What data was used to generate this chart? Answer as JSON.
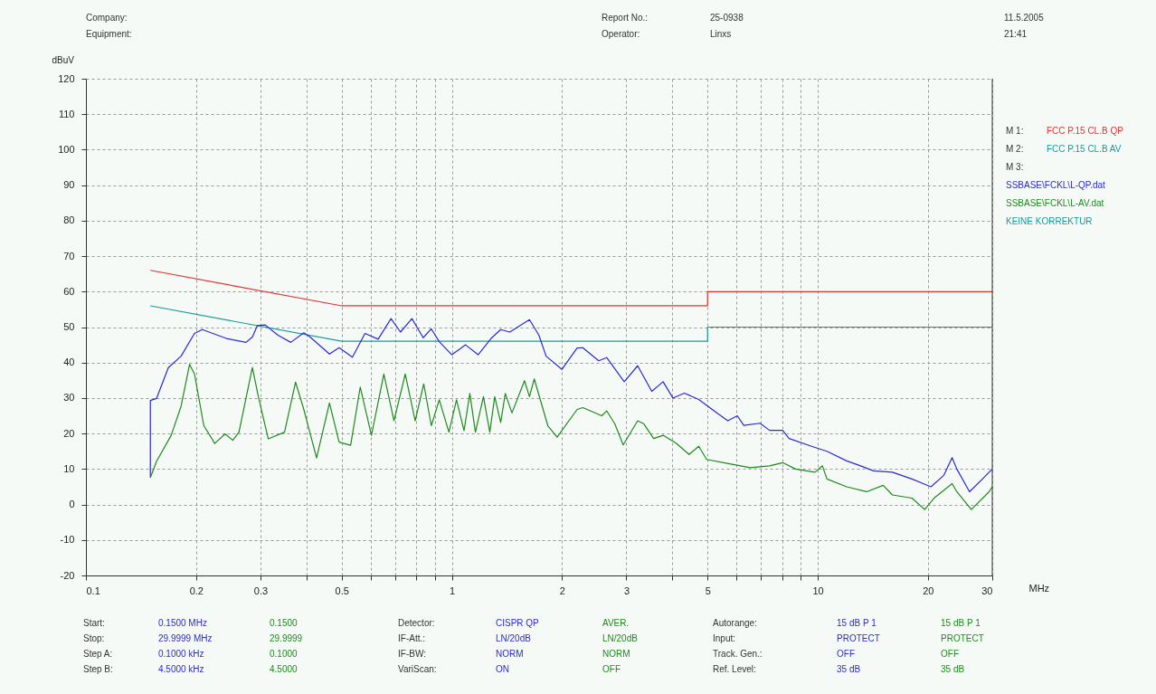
{
  "chart_data": {
    "type": "line",
    "ylabel": "dBuV",
    "xlabel": "MHz",
    "log": "x",
    "grid": true,
    "legend": "right",
    "xlim": [
      0.1,
      30
    ],
    "ylim": [
      -20,
      120
    ],
    "xticks": [
      0.1,
      0.2,
      0.3,
      {
        "value": 0.4,
        "label": null
      },
      0.5,
      {
        "value": 0.6,
        "label": null
      },
      {
        "value": 0.7,
        "label": null
      },
      {
        "value": 0.8,
        "label": null
      },
      {
        "value": 0.9,
        "label": null
      },
      1,
      2,
      3,
      {
        "value": 4,
        "label": null
      },
      5,
      {
        "value": 6,
        "label": null
      },
      {
        "value": 7,
        "label": null
      },
      {
        "value": 8,
        "label": null
      },
      {
        "value": 9,
        "label": null
      },
      10,
      20,
      30
    ],
    "yticks": [
      -20,
      -10,
      0,
      10,
      20,
      30,
      40,
      50,
      60,
      70,
      80,
      90,
      100,
      110,
      120
    ],
    "series": [
      {
        "name": "FCC P.15 CL.B QP",
        "color": "#e83232",
        "x": [
          0.15,
          0.5,
          5,
          5,
          30
        ],
        "values": [
          66,
          56,
          56,
          60,
          60
        ]
      },
      {
        "name": "FCC P.15 CL.B AV",
        "color": "#1a9a9a",
        "x": [
          0.15,
          0.5,
          5,
          5,
          30
        ],
        "values": [
          56,
          46,
          46,
          50,
          50
        ]
      },
      {
        "name": "SSBASE\\FCKL\\L-QP.dat",
        "color": "#2a2ad8",
        "x": [
          0.15,
          0.15,
          0.156,
          0.168,
          0.182,
          0.198,
          0.208,
          0.242,
          0.274,
          0.285,
          0.294,
          0.309,
          0.335,
          0.363,
          0.394,
          0.41,
          0.463,
          0.492,
          0.535,
          0.579,
          0.629,
          0.682,
          0.724,
          0.778,
          0.835,
          0.879,
          0.924,
          1.0,
          1.09,
          1.18,
          1.28,
          1.36,
          1.44,
          1.63,
          1.73,
          1.81,
          2.0,
          2.2,
          2.28,
          2.52,
          2.65,
          2.96,
          3.22,
          3.52,
          3.78,
          4.02,
          4.32,
          4.73,
          5.35,
          5.68,
          6.03,
          6.28,
          6.95,
          7.39,
          8.02,
          8.35,
          9.62,
          10.6,
          12.0,
          13.1,
          14.2,
          16.0,
          18.1,
          20.4,
          22.1,
          23.3,
          24.0,
          26.0,
          28.2,
          29.4,
          30
        ],
        "values": [
          7.6,
          29.3,
          29.9,
          38.6,
          41.8,
          48.2,
          49.3,
          46.8,
          45.7,
          47.2,
          50.4,
          50.6,
          47.7,
          45.7,
          48.4,
          47.2,
          42.4,
          44.2,
          41.5,
          48.2,
          46.6,
          52.4,
          48.6,
          52.4,
          47.0,
          49.5,
          45.9,
          42.2,
          45.0,
          42.2,
          46.8,
          49.3,
          48.6,
          52.1,
          47.7,
          41.8,
          38.1,
          44.1,
          44.2,
          40.5,
          41.4,
          34.6,
          39.1,
          31.9,
          34.6,
          30.0,
          31.4,
          29.6,
          25.5,
          23.6,
          25.0,
          22.3,
          22.9,
          20.9,
          20.9,
          18.6,
          16.4,
          15.0,
          12.3,
          10.9,
          9.5,
          9.1,
          7.2,
          5.0,
          8.2,
          13.2,
          10.0,
          3.6,
          7.2,
          9.1,
          10.0
        ]
      },
      {
        "name": "SSBASE\\FCKL\\L-AV.dat",
        "color": "#1e8a1e",
        "x": [
          0.15,
          0.156,
          0.171,
          0.182,
          0.192,
          0.198,
          0.21,
          0.225,
          0.24,
          0.252,
          0.262,
          0.285,
          0.296,
          0.315,
          0.349,
          0.374,
          0.394,
          0.427,
          0.463,
          0.492,
          0.529,
          0.562,
          0.603,
          0.652,
          0.695,
          0.746,
          0.794,
          0.838,
          0.879,
          0.924,
          0.982,
          1.03,
          1.08,
          1.12,
          1.16,
          1.22,
          1.27,
          1.31,
          1.36,
          1.4,
          1.46,
          1.58,
          1.63,
          1.68,
          1.83,
          1.94,
          2.2,
          2.28,
          2.57,
          2.65,
          2.79,
          2.94,
          3.22,
          3.35,
          3.56,
          3.78,
          4.1,
          4.45,
          4.73,
          4.97,
          5.79,
          6.54,
          7.39,
          8.02,
          8.7,
          9.83,
          10.3,
          10.6,
          12.0,
          13.6,
          15.1,
          16.0,
          18.1,
          19.6,
          20.8,
          23.3,
          24.0,
          26.3,
          29.4,
          30
        ],
        "values": [
          7.6,
          12.2,
          19.5,
          27.7,
          39.5,
          36.8,
          22.2,
          17.2,
          19.9,
          18.1,
          20.4,
          38.6,
          30.4,
          18.5,
          20.4,
          34.5,
          26.8,
          13.1,
          28.6,
          17.6,
          16.7,
          33.1,
          19.5,
          36.8,
          23.6,
          36.8,
          23.6,
          34.0,
          22.2,
          29.5,
          20.4,
          29.5,
          20.8,
          31.3,
          20.4,
          30.4,
          20.4,
          30.4,
          23.1,
          31.3,
          25.8,
          34.9,
          30.4,
          35.4,
          22.2,
          19.0,
          26.8,
          27.3,
          25.0,
          26.4,
          22.7,
          16.8,
          23.6,
          22.7,
          18.6,
          19.5,
          17.3,
          14.1,
          16.4,
          12.7,
          11.4,
          10.4,
          10.9,
          11.8,
          10.0,
          9.1,
          10.9,
          7.2,
          5.0,
          3.6,
          5.4,
          2.7,
          1.8,
          -1.4,
          1.8,
          5.9,
          3.6,
          -1.4,
          3.6,
          5.0
        ]
      }
    ],
    "annotations": [
      "Company:",
      "Report No.:",
      "25-0938",
      "11.5.2005",
      "Equipment:",
      "Operator:",
      "Linxs",
      "21:41",
      "M 1:",
      "M 2:",
      "M 3:",
      "KEINE KORREKTUR",
      "Start:",
      "0.1500 MHz",
      "0.1500",
      "Detector:",
      "CISPR QP",
      "AVER.",
      "Autorange:",
      "15 dB P 1",
      "15 dB P 1",
      "Stop:",
      "29.9999 MHz",
      "29.9999",
      "IF-Att.:",
      "LN/20dB",
      "LN/20dB",
      "Input:",
      "PROTECT",
      "PROTECT",
      "Step A:",
      "0.1000 kHz",
      "0.1000",
      "IF-BW:",
      "NORM",
      "NORM",
      "Track. Gen.:",
      "OFF",
      "OFF",
      "Step B:",
      "4.5000 kHz",
      "4.5000",
      "VariScan:",
      "ON",
      "OFF",
      "Ref. Level:",
      "35 dB",
      "35 dB"
    ]
  }
}
